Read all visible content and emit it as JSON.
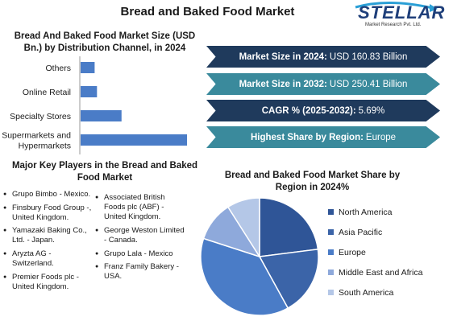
{
  "page": {
    "title": "Bread and Baked Food Market"
  },
  "logo": {
    "name": "STELLAR",
    "tagline": "Market Research Pvt. Ltd."
  },
  "stats": [
    {
      "label": "Market Size in 2024:",
      "value": "USD 160.83 Billion"
    },
    {
      "label": "Market Size in 2032:",
      "value": "USD 250.41 Billion"
    },
    {
      "label": "CAGR % (2025-2032):",
      "value": "5.69%"
    },
    {
      "label": "Highest Share by Region:",
      "value": "Europe"
    }
  ],
  "players": {
    "title": "Major Key Players in the Bread and Baked Food Market",
    "col1": [
      "Grupo Bimbo - Mexico.",
      "Finsbury Food Group -, United Kingdom.",
      "Yamazaki Baking Co., Ltd. - Japan.",
      "Aryzta AG - Switzerland.",
      "Premier Foods plc - United Kingdom."
    ],
    "col2": [
      "Associated British Foods plc (ABF) - United Kingdom.",
      "George Weston Limited - Canada.",
      "Grupo Lala - Mexico",
      "Franz Family Bakery - USA."
    ]
  },
  "chart_data": [
    {
      "type": "bar",
      "orientation": "horizontal",
      "title": "Bread And Baked Food Market Size (USD Bn.) by Distribution Channel, in 2024",
      "categories": [
        "Others",
        "Online Retail",
        "Specialty Stores",
        "Supermarkets and Hypermarkets"
      ],
      "values": [
        12,
        14,
        35,
        91
      ],
      "color": "#4a7cc7",
      "grid": false,
      "xaxis_visible": false
    },
    {
      "type": "pie",
      "title": "Bread and Baked Food Market Share by Region in 2024%",
      "categories": [
        "North America",
        "Asia Pacific",
        "Europe",
        "Middle East and Africa",
        "South America"
      ],
      "values": [
        23,
        19,
        38,
        11,
        9
      ],
      "colors": [
        "#2f5597",
        "#3b64a8",
        "#4a7cc7",
        "#8ea9db",
        "#b4c7e7"
      ],
      "legend_position": "right"
    }
  ]
}
